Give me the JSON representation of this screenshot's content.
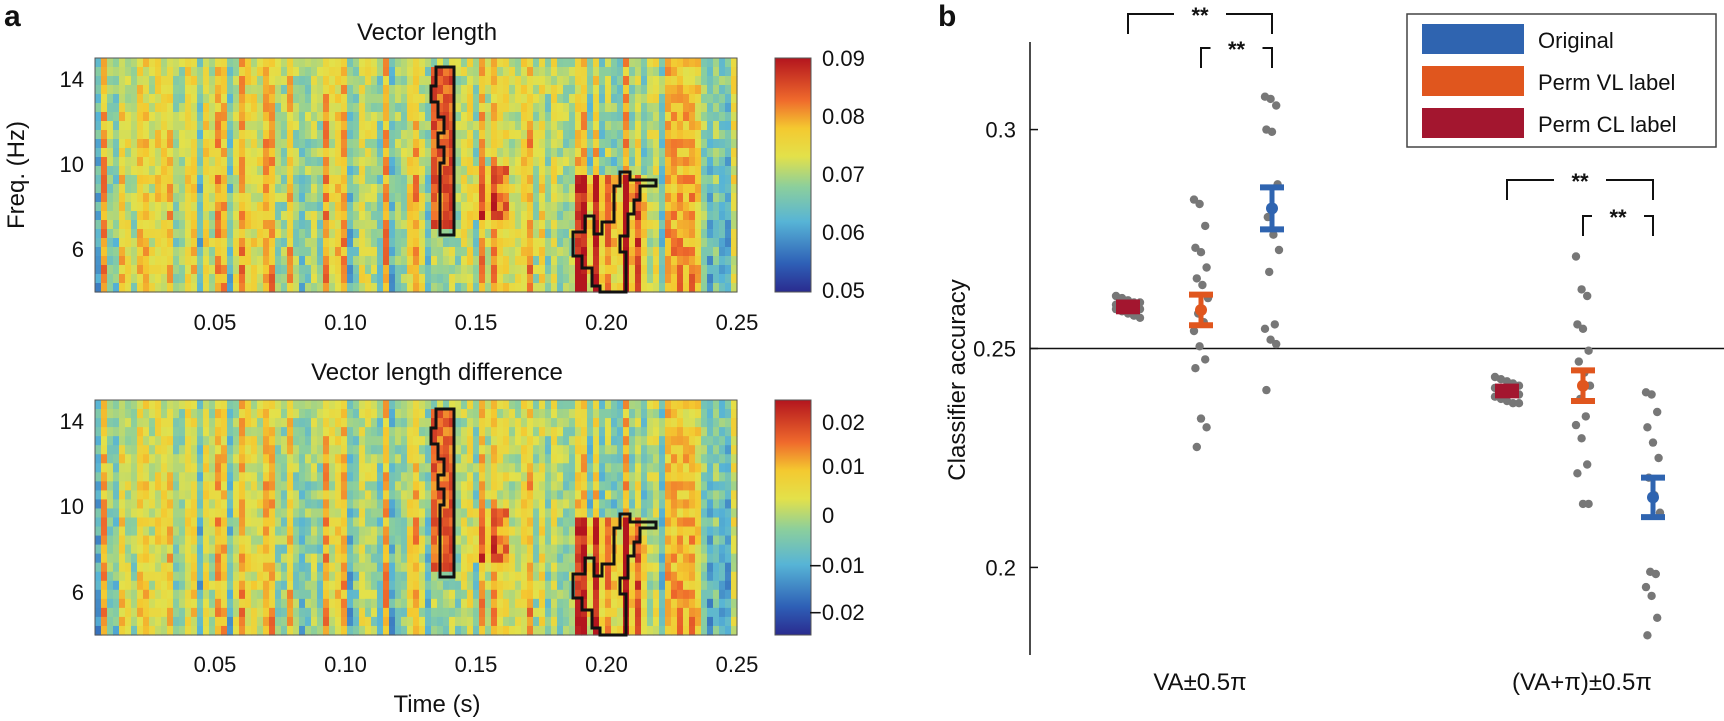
{
  "panel_labels": {
    "a": "a",
    "b": "b"
  },
  "chart_data": [
    {
      "type": "heatmap",
      "title": "Vector length",
      "xlabel": "",
      "ylabel": "Freq. (Hz)",
      "x_ticks": [
        "0.05",
        "0.10",
        "0.15",
        "0.20",
        "0.25"
      ],
      "x_tick_values": [
        0.05,
        0.1,
        0.15,
        0.2,
        0.25
      ],
      "xlim": [
        0.004,
        0.25
      ],
      "y_ticks": [
        "6",
        "10",
        "14"
      ],
      "y_tick_values": [
        6,
        10,
        14
      ],
      "ylim": [
        4,
        15
      ],
      "colorbar": {
        "ticks": [
          "0.09",
          "0.08",
          "0.07",
          "0.06",
          "0.05"
        ],
        "tick_values": [
          0.09,
          0.08,
          0.07,
          0.06,
          0.05
        ],
        "range": [
          0.05,
          0.09
        ]
      },
      "significant_clusters": [
        {
          "time_range": [
            0.133,
            0.142
          ],
          "freq_range": [
            6.5,
            14.6
          ]
        },
        {
          "time_range": [
            0.189,
            0.22
          ],
          "freq_range": [
            4,
            9.4
          ]
        }
      ]
    },
    {
      "type": "heatmap",
      "title": "Vector length difference",
      "xlabel": "Time (s)",
      "ylabel": "",
      "x_ticks": [
        "0.05",
        "0.10",
        "0.15",
        "0.20",
        "0.25"
      ],
      "x_tick_values": [
        0.05,
        0.1,
        0.15,
        0.2,
        0.25
      ],
      "xlim": [
        0.004,
        0.25
      ],
      "y_ticks": [
        "6",
        "10",
        "14"
      ],
      "y_tick_values": [
        6,
        10,
        14
      ],
      "ylim": [
        4,
        15
      ],
      "colorbar": {
        "ticks": [
          "0.02",
          "0.01",
          "0",
          "−0.01",
          "−0.02"
        ],
        "tick_values": [
          0.02,
          0.01,
          0,
          -0.01,
          -0.02
        ],
        "range": [
          -0.025,
          0.025
        ]
      },
      "significant_clusters": [
        {
          "time_range": [
            0.133,
            0.142
          ],
          "freq_range": [
            6.5,
            14.6
          ]
        },
        {
          "time_range": [
            0.189,
            0.22
          ],
          "freq_range": [
            4,
            9.4
          ]
        }
      ]
    },
    {
      "type": "scatter",
      "title": "",
      "xlabel": "",
      "ylabel": "Classifier accuracy",
      "ylim": [
        0.18,
        0.32
      ],
      "y_ticks": [
        "0.3",
        "0.25",
        "0.2"
      ],
      "y_tick_values": [
        0.3,
        0.25,
        0.2
      ],
      "chance_line": 0.25,
      "categories": [
        "VA±0.5π",
        "(VA+π)±0.5π"
      ],
      "legend": {
        "position": "top-right",
        "entries": [
          {
            "name": "Original",
            "color": "#2f64b0"
          },
          {
            "name": "Perm VL label",
            "color": "#e0561e"
          },
          {
            "name": "Perm CL label",
            "color": "#a3162f"
          }
        ]
      },
      "series": [
        {
          "name": "Perm CL label",
          "color": "#a3162f",
          "groups": [
            {
              "category": "VA±0.5π",
              "mean": 0.2595,
              "err": 0.001,
              "points": [
                0.262,
                0.2615,
                0.261,
                0.2605,
                0.2605,
                0.26,
                0.26,
                0.2595,
                0.2595,
                0.259,
                0.259,
                0.2585,
                0.258,
                0.2575,
                0.257
              ]
            },
            {
              "category": "(VA+π)±0.5π",
              "mean": 0.2403,
              "err": 0.001,
              "points": [
                0.2435,
                0.243,
                0.2425,
                0.242,
                0.2415,
                0.241,
                0.2405,
                0.24,
                0.24,
                0.2395,
                0.239,
                0.2385,
                0.238,
                0.2375,
                0.2375
              ]
            }
          ]
        },
        {
          "name": "Perm VL label",
          "color": "#e0561e",
          "groups": [
            {
              "category": "VA±0.5π",
              "mean": 0.2588,
              "err": 0.0035,
              "points": [
                0.284,
                0.283,
                0.278,
                0.273,
                0.272,
                0.2685,
                0.266,
                0.2645,
                0.2615,
                0.258,
                0.256,
                0.254,
                0.2505,
                0.2475,
                0.2455,
                0.234,
                0.232,
                0.2275
              ]
            },
            {
              "category": "(VA+π)±0.5π",
              "mean": 0.2415,
              "err": 0.0035,
              "points": [
                0.271,
                0.2635,
                0.262,
                0.2555,
                0.2545,
                0.2495,
                0.247,
                0.2445,
                0.2415,
                0.2385,
                0.2345,
                0.2325,
                0.2295,
                0.2235,
                0.2215,
                0.2145,
                0.2145
              ]
            }
          ]
        },
        {
          "name": "Original",
          "color": "#2f64b0",
          "groups": [
            {
              "category": "VA±0.5π",
              "mean": 0.282,
              "err": 0.0048,
              "points": [
                0.3075,
                0.307,
                0.3055,
                0.3,
                0.2995,
                0.2875,
                0.28,
                0.276,
                0.2725,
                0.2675,
                0.2555,
                0.2545,
                0.252,
                0.251,
                0.2405
              ]
            },
            {
              "category": "(VA+π)±0.5π",
              "mean": 0.216,
              "err": 0.0045,
              "points": [
                0.24,
                0.2395,
                0.2355,
                0.232,
                0.2285,
                0.225,
                0.2205,
                0.2165,
                0.2125,
                0.199,
                0.1985,
                0.1955,
                0.1935,
                0.1885,
                0.1845
              ]
            }
          ]
        }
      ],
      "significance": [
        {
          "group": "VA±0.5π",
          "from": "Perm CL label",
          "to": "Original",
          "label": "**"
        },
        {
          "group": "VA±0.5π",
          "from": "Perm VL label",
          "to": "Original",
          "label": "**"
        },
        {
          "group": "(VA+π)±0.5π",
          "from": "Perm CL label",
          "to": "Original",
          "label": "**"
        },
        {
          "group": "(VA+π)±0.5π",
          "from": "Perm VL label",
          "to": "Original",
          "label": "**"
        }
      ]
    }
  ]
}
